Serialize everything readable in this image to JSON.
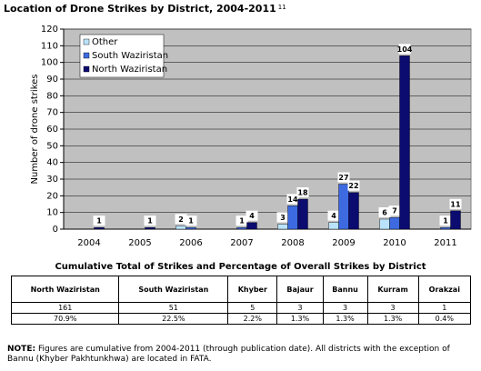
{
  "chart_data": {
    "type": "bar",
    "title": "Location of Drone Strikes by District, 2004-2011",
    "title_footnote": "11",
    "y_label": "Number of drone strikes",
    "categories": [
      "2004",
      "2005",
      "2006",
      "2007",
      "2008",
      "2009",
      "2010",
      "2011"
    ],
    "series": [
      {
        "name": "Other",
        "color": "#b9e3fa",
        "values": [
          null,
          null,
          2,
          null,
          3,
          4,
          6,
          null
        ]
      },
      {
        "name": "South Waziristan",
        "color": "#3d6ae0",
        "values": [
          null,
          null,
          1,
          1,
          14,
          27,
          7,
          1
        ]
      },
      {
        "name": "North Waziristan",
        "color": "#0b0b70",
        "values": [
          1,
          1,
          null,
          4,
          18,
          22,
          104,
          11
        ]
      }
    ],
    "ylim": [
      0,
      120
    ],
    "yticks": [
      0,
      10,
      20,
      30,
      40,
      50,
      60,
      70,
      80,
      90,
      100,
      110,
      120
    ],
    "grid": true,
    "legend": "upper-left"
  },
  "table": {
    "title": "Cumulative Total of Strikes and Percentage of Overall Strikes by District",
    "header": [
      "North Waziristan",
      "South Waziristan",
      "Khyber",
      "Bajaur",
      "Bannu",
      "Kurram",
      "Orakzai"
    ],
    "rows": [
      [
        "161",
        "51",
        "5",
        "3",
        "3",
        "3",
        "1"
      ],
      [
        "70.9%",
        "22.5%",
        "2.2%",
        "1.3%",
        "1.3%",
        "1.3%",
        "0.4%"
      ]
    ]
  },
  "note": {
    "label": "NOTE:",
    "text": "Figures are cumulative from 2004-2011 (through publication date). All districts with the exception of Bannu (Khyber Pakhtunkhwa) are located in FATA."
  }
}
